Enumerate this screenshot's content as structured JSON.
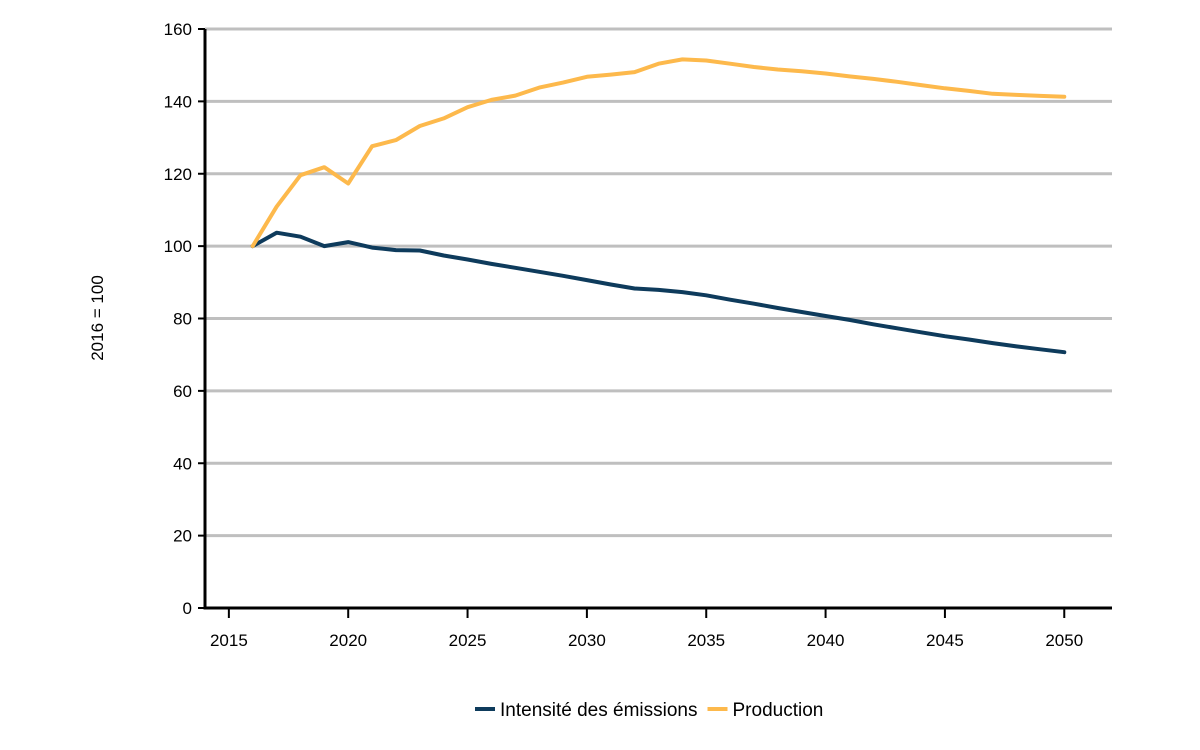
{
  "chart_data": {
    "type": "line",
    "title": "",
    "xlabel": "",
    "ylabel": "2016 = 100",
    "xlim": [
      2014,
      2052
    ],
    "ylim": [
      0,
      160
    ],
    "x_ticks": [
      2015,
      2020,
      2025,
      2030,
      2035,
      2040,
      2045,
      2050
    ],
    "y_ticks": [
      0,
      20,
      40,
      60,
      80,
      100,
      120,
      140,
      160
    ],
    "grid": "horizontal",
    "legend_position": "bottom-center",
    "x": [
      2016,
      2017,
      2018,
      2019,
      2020,
      2021,
      2022,
      2023,
      2024,
      2025,
      2026,
      2027,
      2028,
      2029,
      2030,
      2031,
      2032,
      2033,
      2034,
      2035,
      2036,
      2037,
      2038,
      2039,
      2040,
      2041,
      2042,
      2043,
      2044,
      2045,
      2046,
      2047,
      2048,
      2049,
      2050
    ],
    "series": [
      {
        "name": "Intensité des émissions",
        "color": "#0e3b5c",
        "values": [
          100,
          103.7,
          102.6,
          100,
          101.1,
          99.6,
          98.9,
          98.8,
          97.4,
          96.3,
          95.1,
          94,
          92.9,
          91.8,
          90.6,
          89.4,
          88.3,
          87.9,
          87.3,
          86.4,
          85.2,
          84.1,
          82.9,
          81.8,
          80.7,
          79.6,
          78.4,
          77.3,
          76.2,
          75.1,
          74.2,
          73.2,
          72.3,
          71.5,
          70.7
        ]
      },
      {
        "name": "Production",
        "color": "#fdb94c",
        "values": [
          100,
          110.9,
          119.6,
          121.8,
          117.3,
          127.6,
          129.3,
          133.2,
          135.3,
          138.4,
          140.4,
          141.6,
          143.8,
          145.2,
          146.8,
          147.4,
          148.1,
          150.4,
          151.6,
          151.3,
          150.4,
          149.5,
          148.8,
          148.3,
          147.7,
          146.9,
          146.2,
          145.4,
          144.5,
          143.6,
          142.9,
          142.1,
          141.8,
          141.5,
          141.3
        ]
      }
    ]
  }
}
